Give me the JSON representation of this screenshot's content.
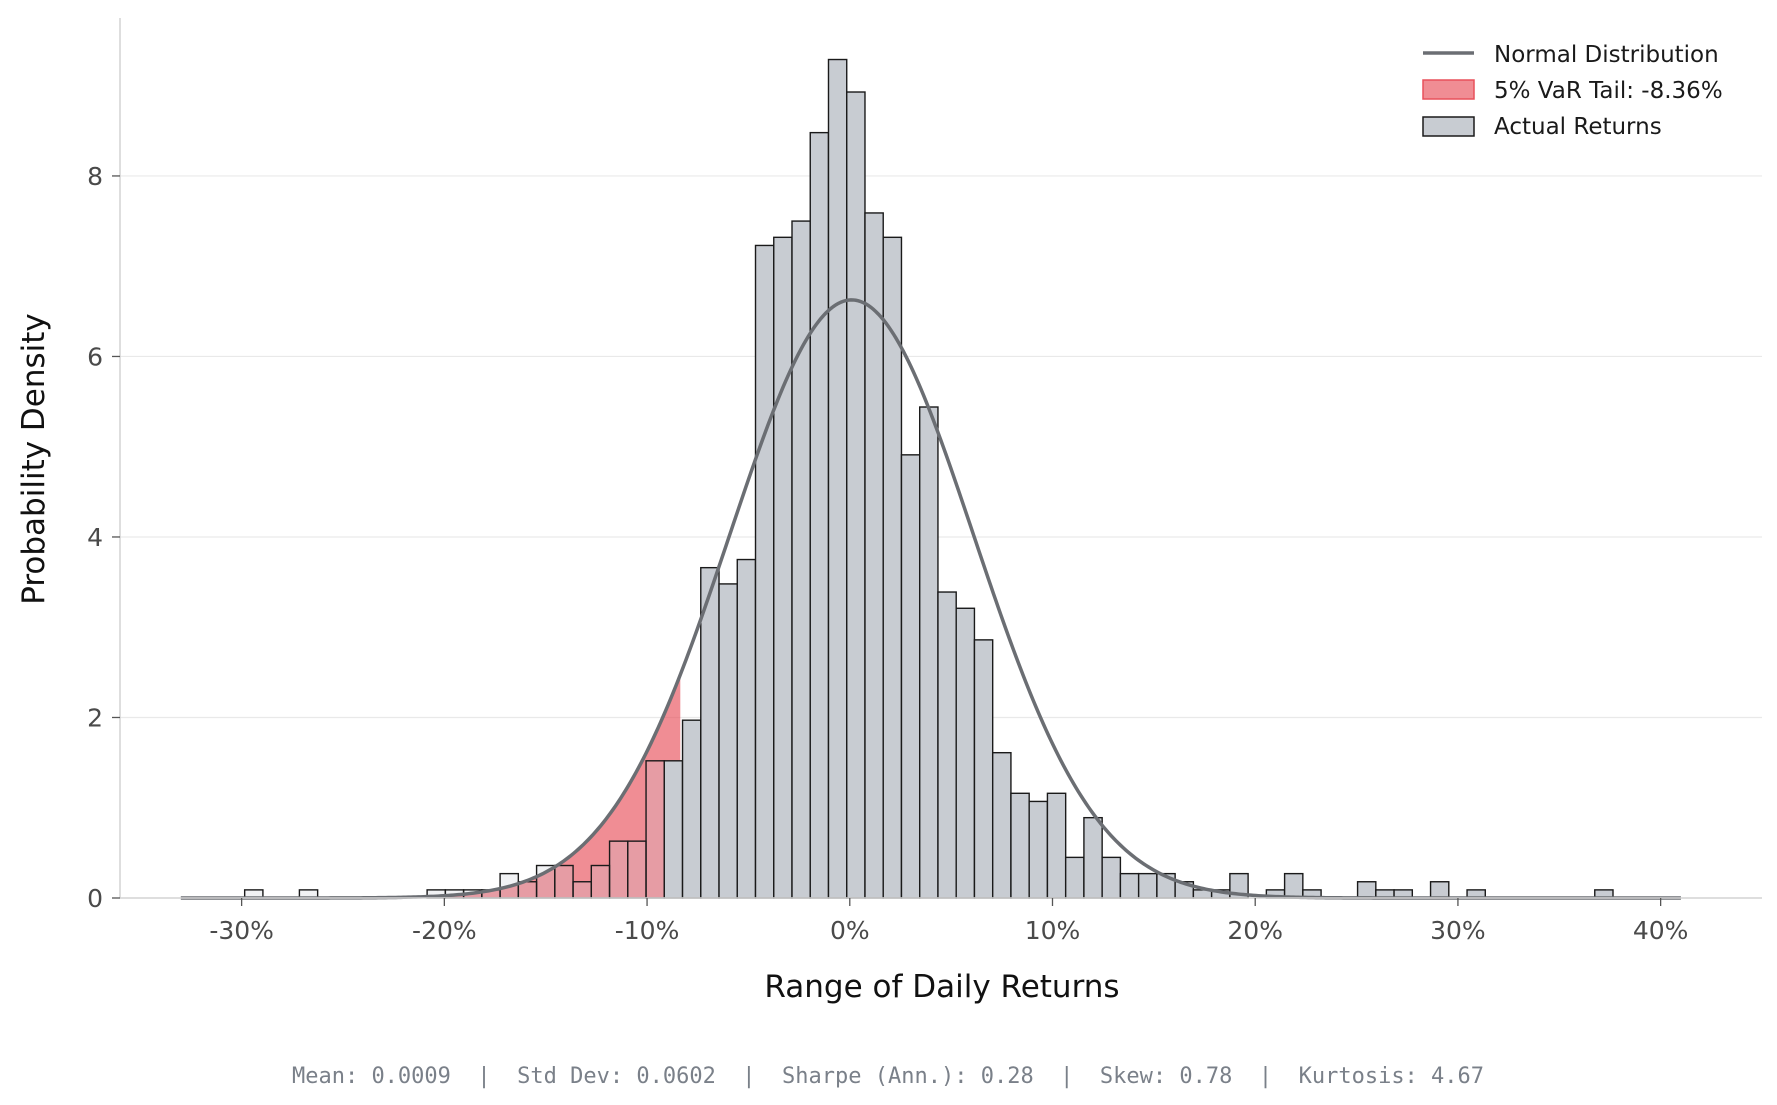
{
  "chart_data": {
    "type": "histogram",
    "xlabel": "Range of Daily Returns",
    "ylabel": "Probability Density",
    "xlim": [
      -0.36,
      0.45
    ],
    "ylim": [
      0,
      9.75
    ],
    "xticks": [
      -0.3,
      -0.2,
      -0.1,
      0,
      0.1,
      0.2,
      0.3,
      0.4
    ],
    "xtick_labels": [
      "-30%",
      "-20%",
      "-10%",
      "0%",
      "10%",
      "20%",
      "30%",
      "40%"
    ],
    "yticks": [
      0,
      2,
      4,
      6,
      8
    ],
    "ytick_labels": [
      "0",
      "2",
      "4",
      "6",
      "8"
    ],
    "grid": "horizontal",
    "legend_position": "top-right",
    "bin_width": 0.009,
    "histogram": {
      "name": "Actual Returns",
      "color": "#c8ccd2",
      "edge_color": "#1a1a1a",
      "bins": [
        {
          "x": -0.294,
          "y": 0.09
        },
        {
          "x": -0.267,
          "y": 0.09
        },
        {
          "x": -0.204,
          "y": 0.09
        },
        {
          "x": -0.195,
          "y": 0.09
        },
        {
          "x": -0.186,
          "y": 0.09
        },
        {
          "x": -0.177,
          "y": 0.09
        },
        {
          "x": -0.168,
          "y": 0.27
        },
        {
          "x": -0.159,
          "y": 0.18
        },
        {
          "x": -0.15,
          "y": 0.36
        },
        {
          "x": -0.141,
          "y": 0.36
        },
        {
          "x": -0.132,
          "y": 0.18
        },
        {
          "x": -0.123,
          "y": 0.36
        },
        {
          "x": -0.114,
          "y": 0.63
        },
        {
          "x": -0.105,
          "y": 0.63
        },
        {
          "x": -0.096,
          "y": 1.52
        },
        {
          "x": -0.087,
          "y": 1.52
        },
        {
          "x": -0.078,
          "y": 1.97
        },
        {
          "x": -0.069,
          "y": 3.66
        },
        {
          "x": -0.06,
          "y": 3.48
        },
        {
          "x": -0.051,
          "y": 3.75
        },
        {
          "x": -0.042,
          "y": 7.23
        },
        {
          "x": -0.033,
          "y": 7.32
        },
        {
          "x": -0.024,
          "y": 7.5
        },
        {
          "x": -0.015,
          "y": 8.48
        },
        {
          "x": -0.006,
          "y": 9.29
        },
        {
          "x": 0.003,
          "y": 8.93
        },
        {
          "x": 0.012,
          "y": 7.59
        },
        {
          "x": 0.021,
          "y": 7.32
        },
        {
          "x": 0.03,
          "y": 4.91
        },
        {
          "x": 0.039,
          "y": 5.44
        },
        {
          "x": 0.048,
          "y": 3.39
        },
        {
          "x": 0.057,
          "y": 3.21
        },
        {
          "x": 0.066,
          "y": 2.86
        },
        {
          "x": 0.075,
          "y": 1.61
        },
        {
          "x": 0.084,
          "y": 1.16
        },
        {
          "x": 0.093,
          "y": 1.07
        },
        {
          "x": 0.102,
          "y": 1.16
        },
        {
          "x": 0.111,
          "y": 0.45
        },
        {
          "x": 0.12,
          "y": 0.89
        },
        {
          "x": 0.129,
          "y": 0.45
        },
        {
          "x": 0.138,
          "y": 0.27
        },
        {
          "x": 0.147,
          "y": 0.27
        },
        {
          "x": 0.156,
          "y": 0.27
        },
        {
          "x": 0.165,
          "y": 0.18
        },
        {
          "x": 0.174,
          "y": 0.09
        },
        {
          "x": 0.183,
          "y": 0.09
        },
        {
          "x": 0.192,
          "y": 0.27
        },
        {
          "x": 0.21,
          "y": 0.09
        },
        {
          "x": 0.219,
          "y": 0.27
        },
        {
          "x": 0.228,
          "y": 0.09
        },
        {
          "x": 0.255,
          "y": 0.18
        },
        {
          "x": 0.264,
          "y": 0.09
        },
        {
          "x": 0.273,
          "y": 0.09
        },
        {
          "x": 0.291,
          "y": 0.18
        },
        {
          "x": 0.309,
          "y": 0.09
        },
        {
          "x": 0.372,
          "y": 0.09
        }
      ]
    },
    "normal_curve": {
      "name": "Normal Distribution",
      "color": "#6b6e73",
      "mean": 0.0009,
      "std": 0.0602,
      "x_range": [
        -0.33,
        0.41
      ]
    },
    "var_tail": {
      "name": "5% VaR Tail: -8.36%",
      "color": "#e8505b",
      "threshold": -0.0836
    },
    "legend": [
      "Normal Distribution",
      "5% VaR Tail: -8.36%",
      "Actual Returns"
    ],
    "stats_footer": "Mean: 0.0009  |  Std Dev: 0.0602  |  Sharpe (Ann.): 0.28  |  Skew: 0.78  |  Kurtosis: 4.67"
  }
}
